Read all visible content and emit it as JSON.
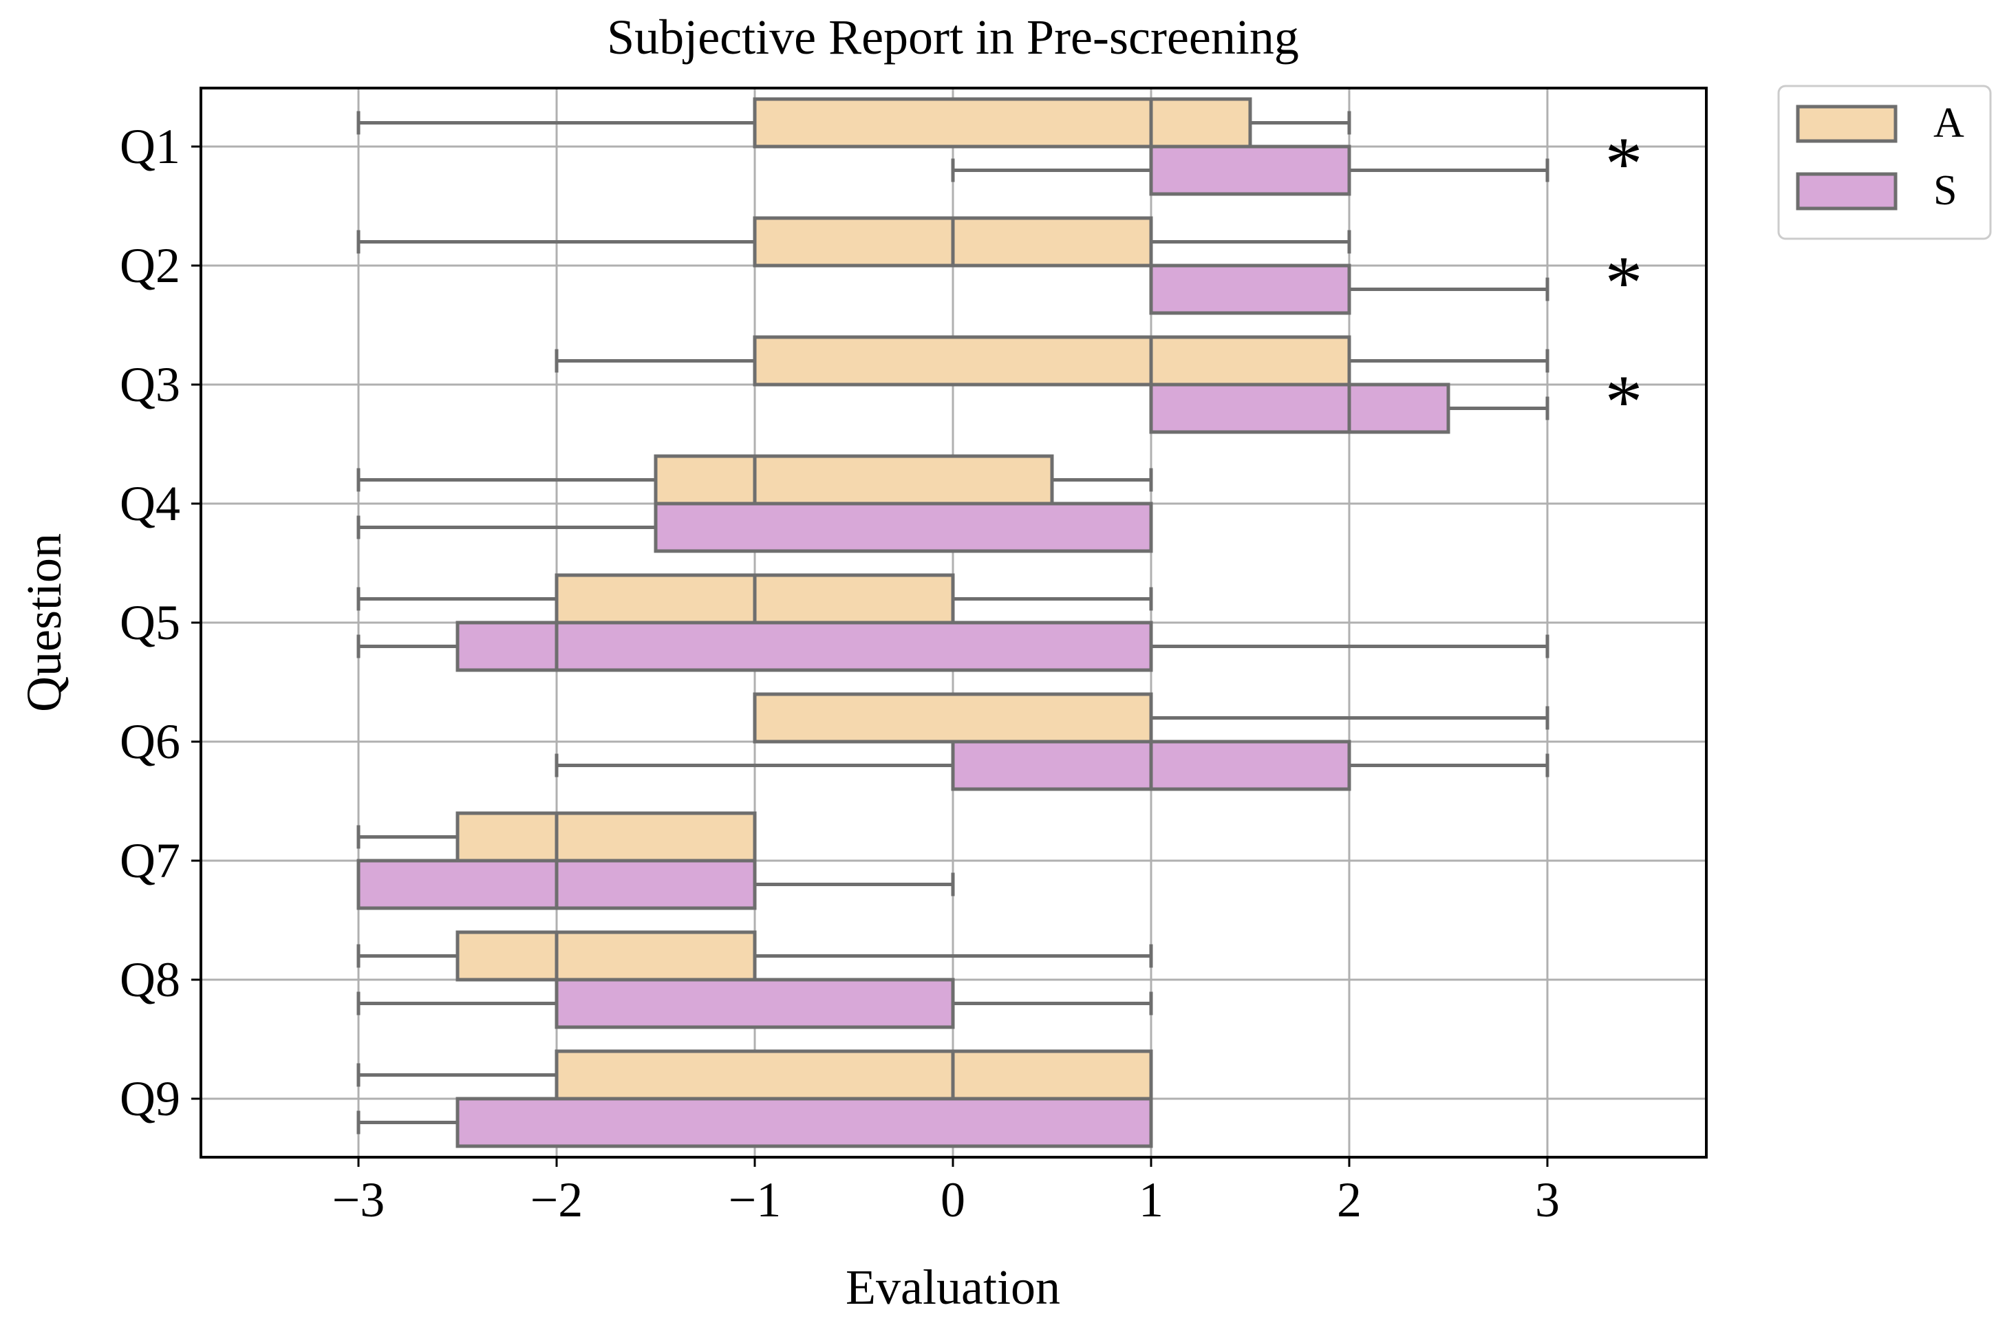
{
  "chart_data": {
    "type": "boxplot",
    "orientation": "horizontal",
    "title": "Subjective Report in Pre-screening",
    "xlabel": "Evaluation",
    "ylabel": "Question",
    "xlim": [
      -3.8,
      3.8
    ],
    "xticks": [
      -3,
      -2,
      -1,
      0,
      1,
      2,
      3
    ],
    "xtick_labels": [
      "−3",
      "−2",
      "−1",
      "0",
      "1",
      "2",
      "3"
    ],
    "grid": true,
    "legend_position": "outside-top-right",
    "categories": [
      "Q1",
      "Q2",
      "Q3",
      "Q4",
      "Q5",
      "Q6",
      "Q7",
      "Q8",
      "Q9"
    ],
    "series": [
      {
        "name": "A",
        "color": "#F5D8AE",
        "boxes": [
          {
            "whislo": -3,
            "q1": -1,
            "med": 1,
            "q3": 1.5,
            "whishi": 2
          },
          {
            "whislo": -3,
            "q1": -1,
            "med": 0,
            "q3": 1,
            "whishi": 2
          },
          {
            "whislo": -2,
            "q1": -1,
            "med": 1,
            "q3": 2,
            "whishi": 3
          },
          {
            "whislo": -3,
            "q1": -1.5,
            "med": -1,
            "q3": 0.5,
            "whishi": 1
          },
          {
            "whislo": -3,
            "q1": -2,
            "med": -1,
            "q3": 0,
            "whishi": 1
          },
          {
            "whislo": -1,
            "q1": -1,
            "med": 1,
            "q3": 1,
            "whishi": 3
          },
          {
            "whislo": -3,
            "q1": -2.5,
            "med": -2,
            "q3": -1,
            "whishi": -1
          },
          {
            "whislo": -3,
            "q1": -2.5,
            "med": -2,
            "q3": -1,
            "whishi": 1
          },
          {
            "whislo": -3,
            "q1": -2,
            "med": 0,
            "q3": 1,
            "whishi": 1
          }
        ]
      },
      {
        "name": "S",
        "color": "#D8A8D8",
        "boxes": [
          {
            "whislo": 0,
            "q1": 1,
            "med": 1,
            "q3": 2,
            "whishi": 3
          },
          {
            "whislo": 1,
            "q1": 1,
            "med": 1,
            "q3": 2,
            "whishi": 3
          },
          {
            "whislo": 1,
            "q1": 1,
            "med": 2,
            "q3": 2.5,
            "whishi": 3
          },
          {
            "whislo": -3,
            "q1": -1.5,
            "med": 1,
            "q3": 1,
            "whishi": 1
          },
          {
            "whislo": -3,
            "q1": -2.5,
            "med": -2,
            "q3": 1,
            "whishi": 3
          },
          {
            "whislo": -2,
            "q1": 0,
            "med": 1,
            "q3": 2,
            "whishi": 3
          },
          {
            "whislo": -3,
            "q1": -3,
            "med": -2,
            "q3": -1,
            "whishi": 0
          },
          {
            "whislo": -3,
            "q1": -2,
            "med": -2,
            "q3": 0,
            "whishi": 1
          },
          {
            "whislo": -3,
            "q1": -2.5,
            "med": 1,
            "q3": 1,
            "whishi": 1
          }
        ]
      }
    ],
    "significance_marker": "*",
    "significant_categories": [
      "Q1",
      "Q2",
      "Q3"
    ]
  }
}
